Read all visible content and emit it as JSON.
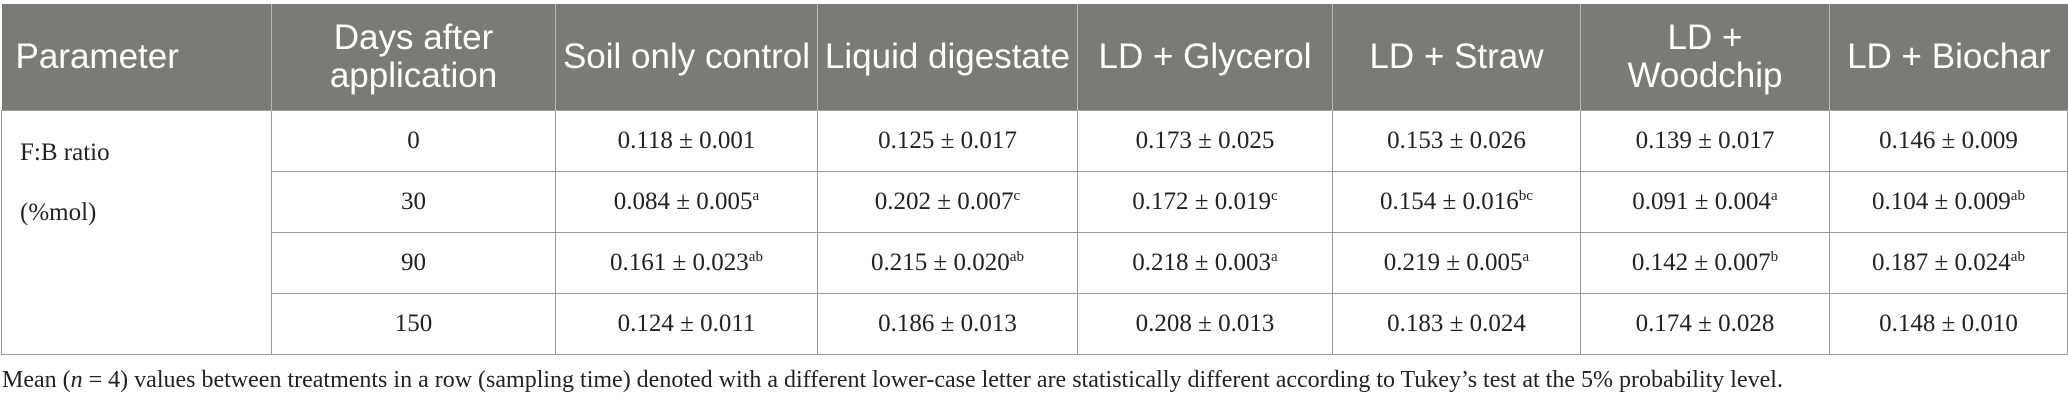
{
  "headers": [
    "Parameter",
    "Days after application",
    "Soil only control",
    "Liquid digestate",
    "LD + Glycerol",
    "LD + Straw",
    "LD + Woodchip",
    "LD + Biochar"
  ],
  "parameter": {
    "line1": "F:B ratio",
    "line2": "(%mol)"
  },
  "rows": [
    {
      "day": "0",
      "cells": [
        {
          "v": "0.118 ± 0.001",
          "s": ""
        },
        {
          "v": "0.125 ± 0.017",
          "s": ""
        },
        {
          "v": "0.173 ± 0.025",
          "s": ""
        },
        {
          "v": "0.153 ± 0.026",
          "s": ""
        },
        {
          "v": "0.139 ± 0.017",
          "s": ""
        },
        {
          "v": "0.146 ± 0.009",
          "s": ""
        }
      ]
    },
    {
      "day": "30",
      "cells": [
        {
          "v": "0.084 ± 0.005",
          "s": "a"
        },
        {
          "v": "0.202 ± 0.007",
          "s": "c"
        },
        {
          "v": "0.172 ± 0.019",
          "s": "c"
        },
        {
          "v": "0.154 ± 0.016",
          "s": "bc"
        },
        {
          "v": "0.091 ± 0.004",
          "s": "a"
        },
        {
          "v": "0.104 ± 0.009",
          "s": "ab"
        }
      ]
    },
    {
      "day": "90",
      "cells": [
        {
          "v": "0.161 ± 0.023",
          "s": "ab"
        },
        {
          "v": "0.215 ± 0.020",
          "s": "ab"
        },
        {
          "v": "0.218 ± 0.003",
          "s": "a"
        },
        {
          "v": "0.219 ± 0.005",
          "s": "a"
        },
        {
          "v": "0.142 ± 0.007",
          "s": "b"
        },
        {
          "v": "0.187 ± 0.024",
          "s": "ab"
        }
      ]
    },
    {
      "day": "150",
      "cells": [
        {
          "v": "0.124 ± 0.011",
          "s": ""
        },
        {
          "v": "0.186 ± 0.013",
          "s": ""
        },
        {
          "v": "0.208 ± 0.013",
          "s": ""
        },
        {
          "v": "0.183 ± 0.024",
          "s": ""
        },
        {
          "v": "0.174 ± 0.028",
          "s": ""
        },
        {
          "v": "0.148 ± 0.010",
          "s": ""
        }
      ]
    }
  ],
  "footnote": {
    "pre": "Mean (",
    "n": "n",
    "post": " = 4) values between treatments in a row (sampling time) denoted with a different lower-case letter are statistically different according to Tukey’s test at the 5% probability level."
  },
  "colors": {
    "header_bg": "#7a7a78",
    "header_text": "#ffffff",
    "rule": "#9c9c9c"
  }
}
